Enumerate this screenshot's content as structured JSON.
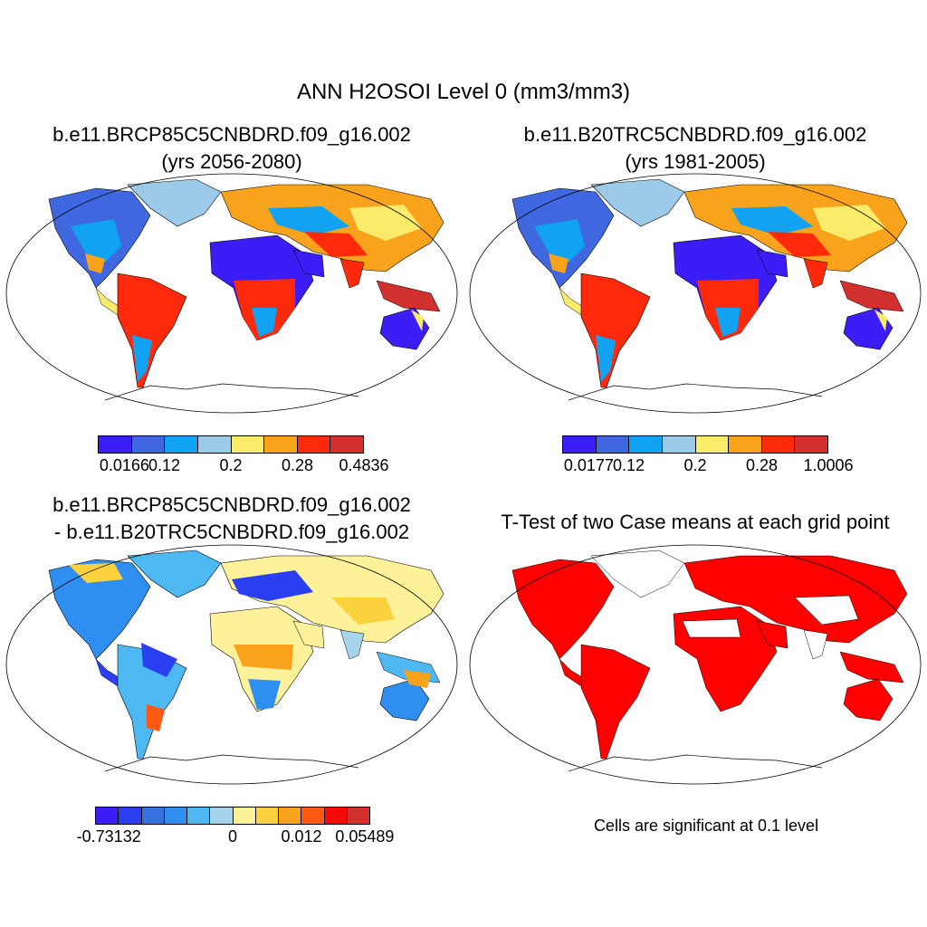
{
  "figure": {
    "title": "ANN H2OSOI Level 0 (mm3/mm3)"
  },
  "panels": [
    {
      "title_line1": "b.e11.BRCP85C5CNBDRD.f09_g16.002",
      "title_line2": "(yrs 2056-2080)"
    },
    {
      "title_line1": "b.e11.B20TRC5CNBDRD.f09_g16.002",
      "title_line2": "(yrs 1981-2005)"
    },
    {
      "title_line1": "b.e11.BRCP85C5CNBDRD.f09_g16.002",
      "title_line2": "- b.e11.B20TRC5CNBDRD.f09_g16.002"
    },
    {
      "title_line1": "T-Test of two Case means at each grid point",
      "title_line2": ""
    }
  ],
  "colorbars": [
    {
      "colors": [
        "#3b1ef5",
        "#3f67df",
        "#12a2f2",
        "#9ccbea",
        "#fbeb6a",
        "#f9a21b",
        "#ff2a0c",
        "#d1302f"
      ],
      "labels": [
        "0.0166",
        "0.12",
        "0.2",
        "0.28",
        "0.4836"
      ]
    },
    {
      "colors": [
        "#3b1ef5",
        "#3f67df",
        "#12a2f2",
        "#9ccbea",
        "#fbeb6a",
        "#f9a21b",
        "#ff2a0c",
        "#d1302f"
      ],
      "labels": [
        "0.0177",
        "0.12",
        "0.2",
        "0.28",
        "1.0006"
      ]
    },
    {
      "colors": [
        "#3b1ef5",
        "#2b3ff0",
        "#3a6fe0",
        "#2f8ff0",
        "#4db8f2",
        "#a6d4ea",
        "#fdf19a",
        "#fbd23e",
        "#f9a21b",
        "#ff5a14",
        "#f50a0a",
        "#d1302f"
      ],
      "labels": [
        "-0.73132",
        "0",
        "0.012",
        "0.05489"
      ]
    }
  ],
  "significance_note": "Cells are significant at 0.1 level",
  "significance_color": "#ff0000"
}
